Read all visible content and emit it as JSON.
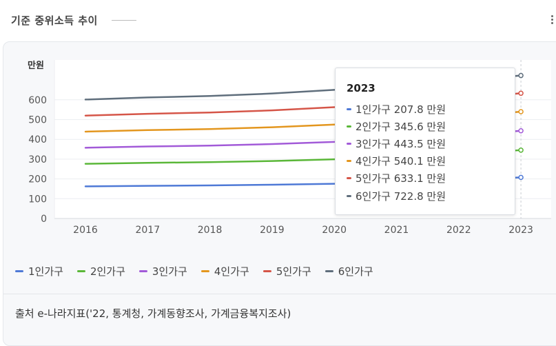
{
  "header": {
    "title": "기준 중위소득 추이"
  },
  "chart_data": {
    "type": "line",
    "ylabel": "만원",
    "ylim": [
      0,
      700
    ],
    "yticks": [
      0,
      100,
      200,
      300,
      400,
      500,
      600
    ],
    "categories": [
      "2016",
      "2017",
      "2018",
      "2019",
      "2020",
      "2021",
      "2022",
      "2023"
    ],
    "grid": true,
    "legend_position": "bottom-left",
    "series": [
      {
        "name": "1인가구",
        "color": "#4e79d6",
        "values": [
          162.4,
          165.2,
          167.2,
          170.7,
          175.7,
          182.8,
          194.4,
          207.8
        ]
      },
      {
        "name": "2인가구",
        "color": "#5ab738",
        "values": [
          276.5,
          281.4,
          284.7,
          290.7,
          299.2,
          308.8,
          326.1,
          345.6
        ]
      },
      {
        "name": "3인가구",
        "color": "#a25ad8",
        "values": [
          357.7,
          364.0,
          368.3,
          376.1,
          387.1,
          398.4,
          419.4,
          443.5
        ]
      },
      {
        "name": "4인가구",
        "color": "#e3961e",
        "values": [
          439.0,
          446.7,
          452.0,
          461.3,
          474.9,
          487.6,
          512.1,
          540.1
        ]
      },
      {
        "name": "5인가구",
        "color": "#d55548",
        "values": [
          520.2,
          529.3,
          535.6,
          546.6,
          562.7,
          576.7,
          604.1,
          633.1
        ]
      },
      {
        "name": "6인가구",
        "color": "#5f6e7c",
        "values": [
          601.3,
          611.8,
          619.2,
          631.8,
          650.4,
          665.5,
          694.3,
          722.8
        ]
      }
    ]
  },
  "tooltip": {
    "title": "2023",
    "rows": [
      {
        "text": "1인가구 207.8 만원",
        "color": "#4e79d6"
      },
      {
        "text": "2인가구 345.6 만원",
        "color": "#5ab738"
      },
      {
        "text": "3인가구 443.5 만원",
        "color": "#a25ad8"
      },
      {
        "text": "4인가구 540.1 만원",
        "color": "#e3961e"
      },
      {
        "text": "5인가구 633.1 만원",
        "color": "#d55548"
      },
      {
        "text": "6인가구 722.8 만원",
        "color": "#5f6e7c"
      }
    ]
  },
  "footer": {
    "source": "출처 e-나라지표('22, 통계청, 가계동향조사, 가계금융복지조사)"
  }
}
